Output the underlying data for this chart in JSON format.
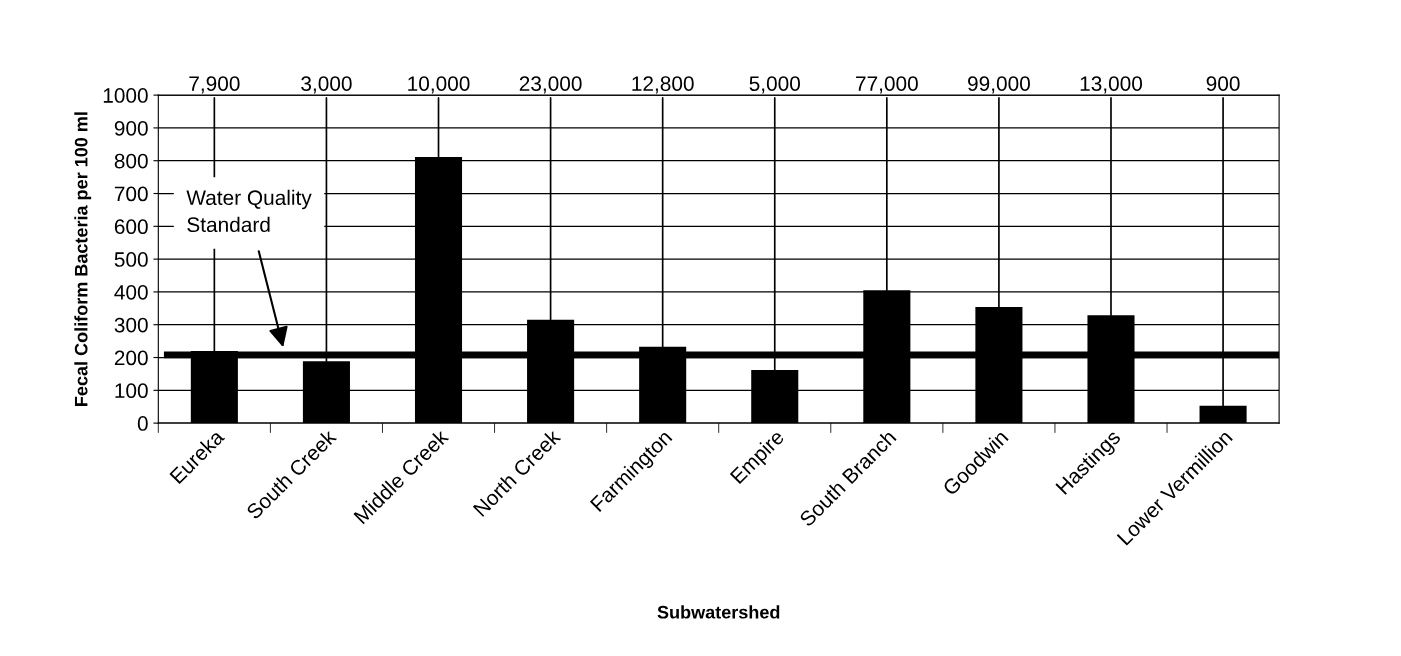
{
  "chart_data": {
    "type": "bar",
    "xlabel": "Subwatershed",
    "ylabel": "Fecal Coliform Bacteria per 100 ml",
    "categories": [
      "Eureka",
      "South Creek",
      "Middle Creek",
      "North Creek",
      "Farmington",
      "Empire",
      "South Branch",
      "Goodwin",
      "Hastings",
      "Lower Vermillion"
    ],
    "values": [
      220,
      189,
      811,
      315,
      233,
      162,
      405,
      354,
      329,
      53
    ],
    "color": "#000000",
    "ylim": [
      0,
      1000
    ],
    "yticks": [
      0,
      100,
      200,
      300,
      400,
      500,
      600,
      700,
      800,
      900,
      1000
    ],
    "grid": "y",
    "legend": false,
    "ref_lines": [
      {
        "axis": "y",
        "value": 208,
        "label": "Water Quality\nStandard",
        "color": "#000000"
      }
    ],
    "annotations": [
      {
        "text": "7,900",
        "x": "Eureka",
        "y": 220
      },
      {
        "text": "3,000",
        "x": "South Creek",
        "y": 189
      },
      {
        "text": "10,000",
        "x": "Middle Creek",
        "y": 811
      },
      {
        "text": "23,000",
        "x": "North Creek",
        "y": 315
      },
      {
        "text": "12,800",
        "x": "Farmington",
        "y": 233
      },
      {
        "text": "5,000",
        "x": "Empire",
        "y": 162
      },
      {
        "text": "77,000",
        "x": "South Branch",
        "y": 405
      },
      {
        "text": "99,000",
        "x": "Goodwin",
        "y": 354
      },
      {
        "text": "13,000",
        "x": "Hastings",
        "y": 329
      },
      {
        "text": "900",
        "x": "Lower Vermillion",
        "y": 53
      }
    ]
  }
}
